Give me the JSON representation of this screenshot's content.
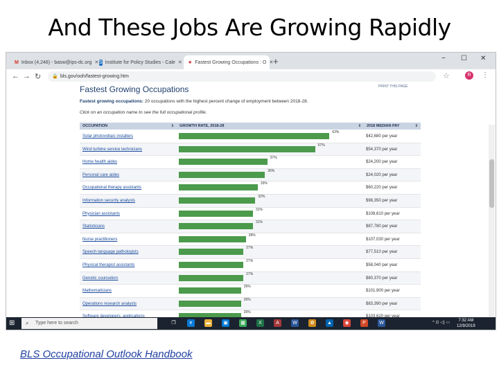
{
  "slide": {
    "title": "And These Jobs Are Growing Rapidly",
    "footer_link": "BLS Occupational Outlook Handbook"
  },
  "browser": {
    "tabs": [
      {
        "label": "Inbox (4,248) - basw@ips-dc.org",
        "icon": "gmail-icon",
        "color": "#d93025",
        "glyph": "M",
        "active": false
      },
      {
        "label": "Institute for Policy Studies - Cale",
        "icon": "ips-icon",
        "color": "#1a6fbf",
        "glyph": "S",
        "active": false
      },
      {
        "label": "Fastest Growing Occupations : O",
        "icon": "bls-icon",
        "color": "#c62828",
        "glyph": "★",
        "active": true
      }
    ],
    "new_tab": "+",
    "window_controls": {
      "minimize": "−",
      "maximize": "☐",
      "close": "✕"
    },
    "nav": {
      "back": "←",
      "forward": "→",
      "reload": "↻"
    },
    "url": "bls.gov/ooh/fastest-growing.htm",
    "profile_initial": "R"
  },
  "page": {
    "heading": "Fastest Growing Occupations",
    "print_link": "PRINT THIS PAGE",
    "intro_bold": "Fastest growing occupations:",
    "intro_rest": " 20 occupations with the highest percent change of employment between 2018-28.",
    "hint": "Click on an occupation name to see the full occupational profile.",
    "columns": {
      "occupation": "OCCUPATION",
      "growth": "GROWTH RATE, 2018-28",
      "pay": "2018 MEDIAN PAY"
    },
    "rows": [
      {
        "occupation": "Solar photovoltaic installers",
        "growth": 63,
        "pay": "$42,680 per year"
      },
      {
        "occupation": "Wind turbine service technicians",
        "growth": 57,
        "pay": "$54,370 per year"
      },
      {
        "occupation": "Home health aides",
        "growth": 37,
        "pay": "$24,200 per year"
      },
      {
        "occupation": "Personal care aides",
        "growth": 36,
        "pay": "$24,020 per year"
      },
      {
        "occupation": "Occupational therapy assistants",
        "growth": 33,
        "pay": "$60,220 per year"
      },
      {
        "occupation": "Information security analysts",
        "growth": 32,
        "pay": "$98,350 per year"
      },
      {
        "occupation": "Physician assistants",
        "growth": 31,
        "pay": "$108,610 per year"
      },
      {
        "occupation": "Statisticians",
        "growth": 31,
        "pay": "$87,780 per year"
      },
      {
        "occupation": "Nurse practitioners",
        "growth": 28,
        "pay": "$107,030 per year"
      },
      {
        "occupation": "Speech-language pathologists",
        "growth": 27,
        "pay": "$77,510 per year"
      },
      {
        "occupation": "Physical therapist assistants",
        "growth": 27,
        "pay": "$58,040 per year"
      },
      {
        "occupation": "Genetic counselors",
        "growth": 27,
        "pay": "$80,370 per year"
      },
      {
        "occupation": "Mathematicians",
        "growth": 26,
        "pay": "$101,900 per year"
      },
      {
        "occupation": "Operations research analysts",
        "growth": 26,
        "pay": "$83,390 per year"
      },
      {
        "occupation": "Software developers, applications",
        "growth": 26,
        "pay": "$103,620 per year"
      }
    ],
    "bar_color": "#4c9a4c"
  },
  "taskbar": {
    "search_placeholder": "Type here to search",
    "apps": [
      {
        "name": "task-view-icon",
        "glyph": "❐",
        "color": "#1b2330"
      },
      {
        "name": "edge-icon",
        "glyph": "e",
        "color": "#0a78d4"
      },
      {
        "name": "file-explorer-icon",
        "glyph": "▬",
        "color": "#e8b23a"
      },
      {
        "name": "store-icon",
        "glyph": "▣",
        "color": "#0078d4"
      },
      {
        "name": "calculator-icon",
        "glyph": "▦",
        "color": "#3aa757"
      },
      {
        "name": "excel-icon",
        "glyph": "X",
        "color": "#1e7145"
      },
      {
        "name": "access-icon",
        "glyph": "A",
        "color": "#a4373a"
      },
      {
        "name": "word-icon",
        "glyph": "W",
        "color": "#2b579a"
      },
      {
        "name": "paint-icon",
        "glyph": "✿",
        "color": "#d08b1a"
      },
      {
        "name": "photos-icon",
        "glyph": "▲",
        "color": "#0063b1"
      },
      {
        "name": "chrome-icon",
        "glyph": "◉",
        "color": "#db4437"
      },
      {
        "name": "powerpoint-icon",
        "glyph": "P",
        "color": "#d24726"
      },
      {
        "name": "word2-icon",
        "glyph": "W",
        "color": "#2b579a"
      }
    ],
    "tray": "^ ⊡ ◁) ▭",
    "time": "7:32 AM",
    "date": "12/9/2019"
  }
}
